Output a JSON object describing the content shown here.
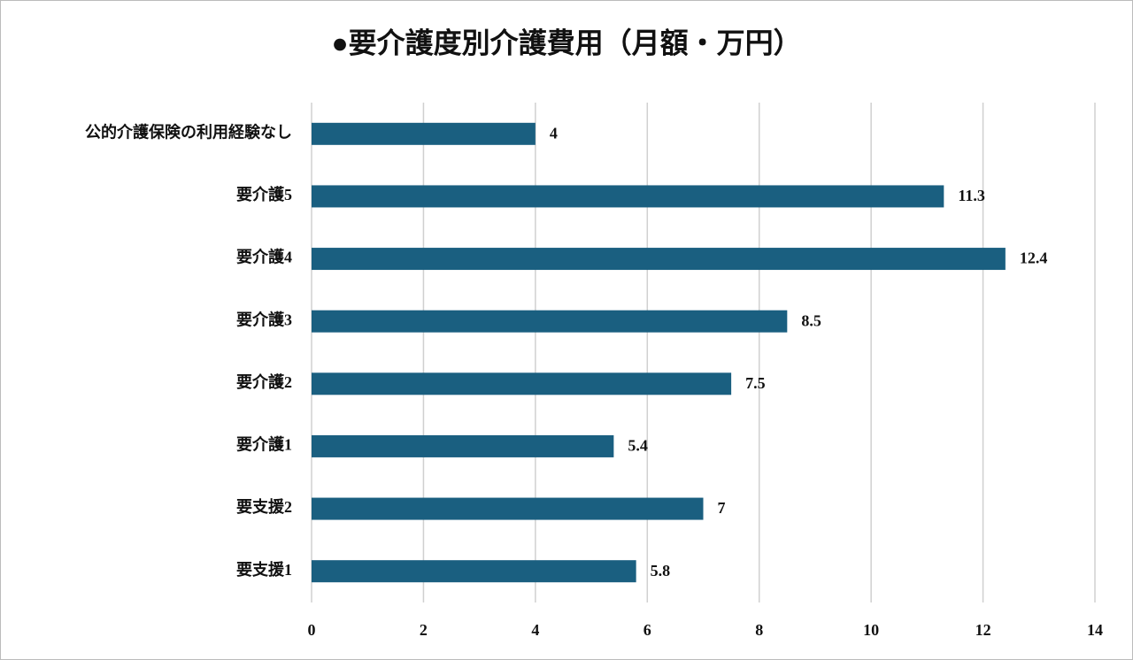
{
  "chart_data": {
    "type": "barh",
    "title": "●要介護度別介護費用（月額・万円）",
    "categories": [
      "公的介護保険の利用経験なし",
      "要介護5",
      "要介護4",
      "要介護3",
      "要介護2",
      "要介護1",
      "要支援2",
      "要支援1"
    ],
    "values": [
      4,
      11.3,
      12.4,
      8.5,
      7.5,
      5.4,
      7,
      5.8
    ],
    "color": "#1a5f80",
    "xlim": [
      0,
      14
    ],
    "xticks": [
      0,
      2,
      4,
      6,
      8,
      10,
      12,
      14
    ],
    "grid": true
  }
}
